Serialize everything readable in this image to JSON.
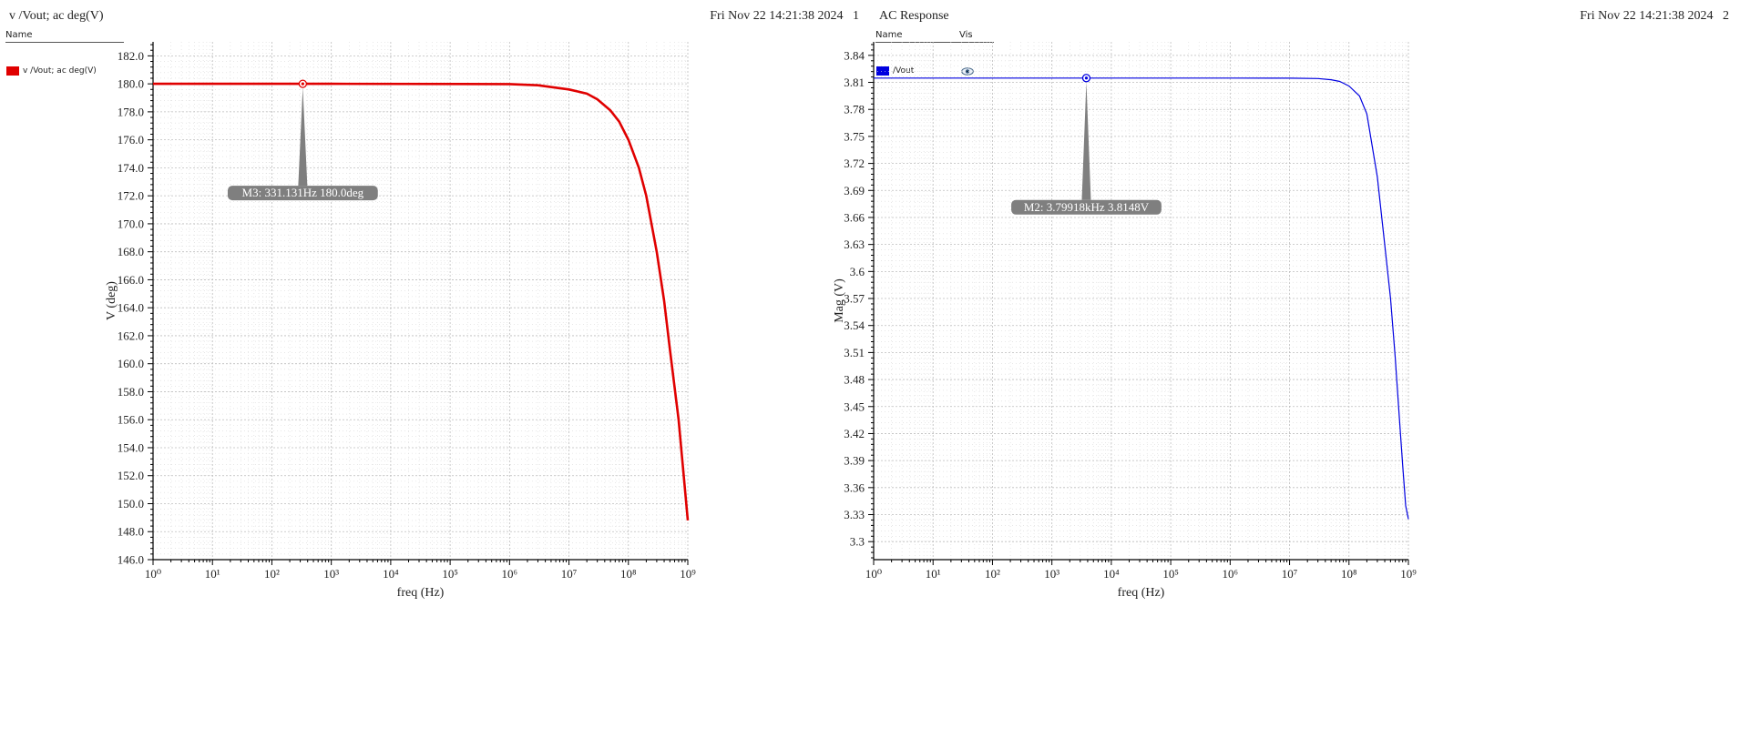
{
  "panels": [
    {
      "title": "v /Vout; ac deg(V)",
      "date": "Fri Nov 22 14:21:38 2024",
      "index": "1",
      "legend_header": {
        "name": "Name"
      },
      "legend_items": [
        {
          "label": "v /Vout; ac deg(V)",
          "color": "#e00000"
        }
      ]
    },
    {
      "title": "AC Response",
      "date": "Fri Nov 22 14:21:38 2024",
      "index": "2",
      "legend_header": {
        "name": "Name",
        "vis": "Vis"
      },
      "legend_items": [
        {
          "label": "/Vout",
          "color": "#0000e0",
          "icon": "eye-icon"
        }
      ]
    }
  ],
  "chart_data": [
    {
      "type": "line",
      "xlabel": "freq (Hz)",
      "ylabel": "V (deg)",
      "xscale": "log",
      "xlim": [
        1,
        1000000000
      ],
      "ylim": [
        146,
        183
      ],
      "x_ticks": [
        1,
        10,
        100,
        1000,
        10000,
        100000,
        1000000,
        10000000,
        100000000,
        1000000000
      ],
      "y_ticks": [
        "146.0",
        "148.0",
        "150.0",
        "152.0",
        "154.0",
        "156.0",
        "158.0",
        "160.0",
        "162.0",
        "164.0",
        "166.0",
        "168.0",
        "170.0",
        "172.0",
        "174.0",
        "176.0",
        "178.0",
        "180.0",
        "182.0"
      ],
      "grid": true,
      "series": [
        {
          "color": "#e00000",
          "x": [
            1,
            1000,
            1000000,
            3000000,
            10000000,
            20000000,
            30000000,
            50000000,
            70000000,
            100000000,
            150000000,
            200000000,
            300000000,
            400000000,
            500000000,
            700000000,
            1000000000
          ],
          "y": [
            180.0,
            180.0,
            179.98,
            179.9,
            179.6,
            179.3,
            178.9,
            178.1,
            177.3,
            176.0,
            174.0,
            172.0,
            168.0,
            164.5,
            161.0,
            156.0,
            148.8
          ]
        }
      ],
      "marker": {
        "label": "M3: 331.131Hz 180.0deg",
        "x": 331.131,
        "y": 180.0
      }
    },
    {
      "type": "line",
      "xlabel": "freq (Hz)",
      "ylabel": "Mag (V)",
      "xscale": "log",
      "xlim": [
        1,
        1000000000
      ],
      "ylim": [
        3.28,
        3.855
      ],
      "x_ticks": [
        1,
        10,
        100,
        1000,
        10000,
        100000,
        1000000,
        10000000,
        100000000,
        1000000000
      ],
      "y_ticks": [
        "3.3",
        "3.33",
        "3.36",
        "3.39",
        "3.42",
        "3.45",
        "3.48",
        "3.51",
        "3.54",
        "3.57",
        "3.6",
        "3.63",
        "3.66",
        "3.69",
        "3.72",
        "3.75",
        "3.78",
        "3.81",
        "3.84"
      ],
      "grid": true,
      "series": [
        {
          "name": "/Vout",
          "color": "#0000e0",
          "x": [
            1,
            1000,
            1000000,
            10000000,
            30000000,
            50000000,
            70000000,
            100000000,
            150000000,
            200000000,
            300000000,
            400000000,
            500000000,
            600000000,
            700000000,
            800000000,
            900000000,
            1000000000
          ],
          "y": [
            3.8148,
            3.8148,
            3.8148,
            3.8147,
            3.8143,
            3.813,
            3.811,
            3.806,
            3.795,
            3.775,
            3.705,
            3.63,
            3.57,
            3.505,
            3.44,
            3.385,
            3.34,
            3.325
          ]
        }
      ],
      "marker": {
        "label": "M2: 3.79918kHz 3.8148V",
        "x": 3799.18,
        "y": 3.8148
      }
    }
  ]
}
